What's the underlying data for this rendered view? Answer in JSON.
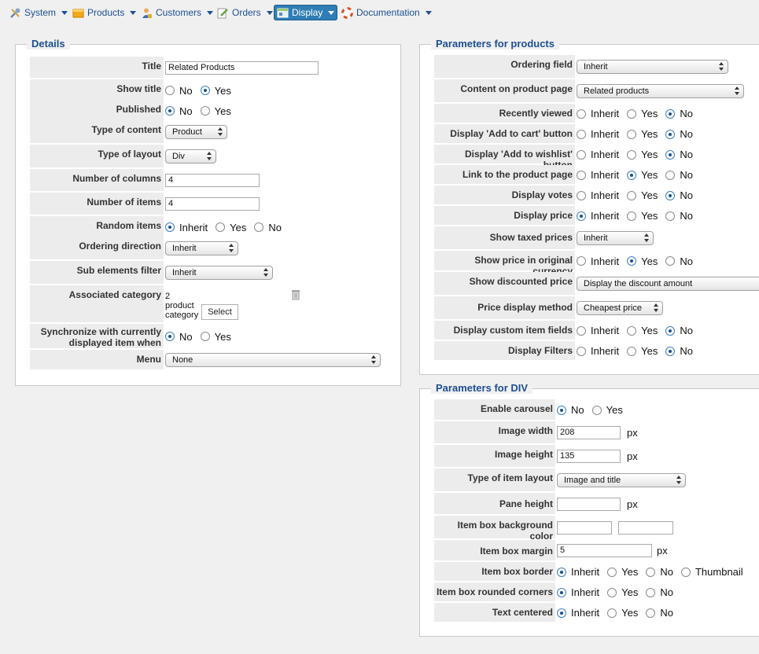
{
  "menu": [
    {
      "label": "System",
      "icon": "wrench-icon"
    },
    {
      "label": "Products",
      "icon": "box-icon"
    },
    {
      "label": "Customers",
      "icon": "user-icon"
    },
    {
      "label": "Orders",
      "icon": "pencil-icon"
    },
    {
      "label": "Display",
      "icon": "window-icon"
    },
    {
      "label": "Documentation",
      "icon": "lifebuoy-icon"
    }
  ],
  "details": {
    "legend": "Details",
    "title_label": "Title",
    "title_value": "Related Products",
    "show_title_label": "Show title",
    "published_label": "Published",
    "type_content_label": "Type of content",
    "type_content_value": "Product",
    "type_layout_label": "Type of layout",
    "type_layout_value": "Div",
    "columns_label": "Number of columns",
    "columns_value": "4",
    "items_label": "Number of items",
    "items_value": "4",
    "random_label": "Random items",
    "ordering_dir_label": "Ordering direction",
    "ordering_dir_value": "Inherit",
    "sub_filter_label": "Sub elements filter",
    "sub_filter_value": "Inherit",
    "assoc_cat_label": "Associated category",
    "assoc_cat_text": "2 product category",
    "select_button": "Select",
    "sync_label": "Synchronize with currently displayed item when possible",
    "menu_label": "Menu",
    "menu_value": "None"
  },
  "params_products": {
    "legend": "Parameters for products",
    "ordering_field_label": "Ordering field",
    "ordering_field_value": "Inherit",
    "content_page_label": "Content on product page",
    "content_page_value": "Related products",
    "recently_viewed_label": "Recently viewed",
    "add_cart_label": "Display 'Add to cart' button",
    "add_wishlist_label": "Display 'Add to wishlist' button",
    "link_page_label": "Link to the product page",
    "votes_label": "Display votes",
    "price_label": "Display price",
    "taxed_label": "Show taxed prices",
    "taxed_value": "Inherit",
    "orig_currency_label": "Show price in original currency",
    "discounted_label": "Show discounted price",
    "discounted_value": "Display the discount amount",
    "price_method_label": "Price display method",
    "price_method_value": "Cheapest price",
    "custom_fields_label": "Display custom item fields",
    "filters_label": "Display Filters"
  },
  "params_div": {
    "legend": "Parameters for DIV",
    "carousel_label": "Enable carousel",
    "img_width_label": "Image width",
    "img_width_value": "208",
    "img_height_label": "Image height",
    "img_height_value": "135",
    "item_layout_label": "Type of item layout",
    "item_layout_value": "Image and title",
    "pane_height_label": "Pane height",
    "bg_color_label": "Item box background color",
    "margin_label": "Item box margin",
    "margin_value": "5",
    "border_label": "Item box border",
    "rounded_label": "Item box rounded corners",
    "centered_label": "Text centered",
    "px": "px"
  },
  "opt": {
    "no": "No",
    "yes": "Yes",
    "inherit": "Inherit",
    "thumbnail": "Thumbnail"
  }
}
